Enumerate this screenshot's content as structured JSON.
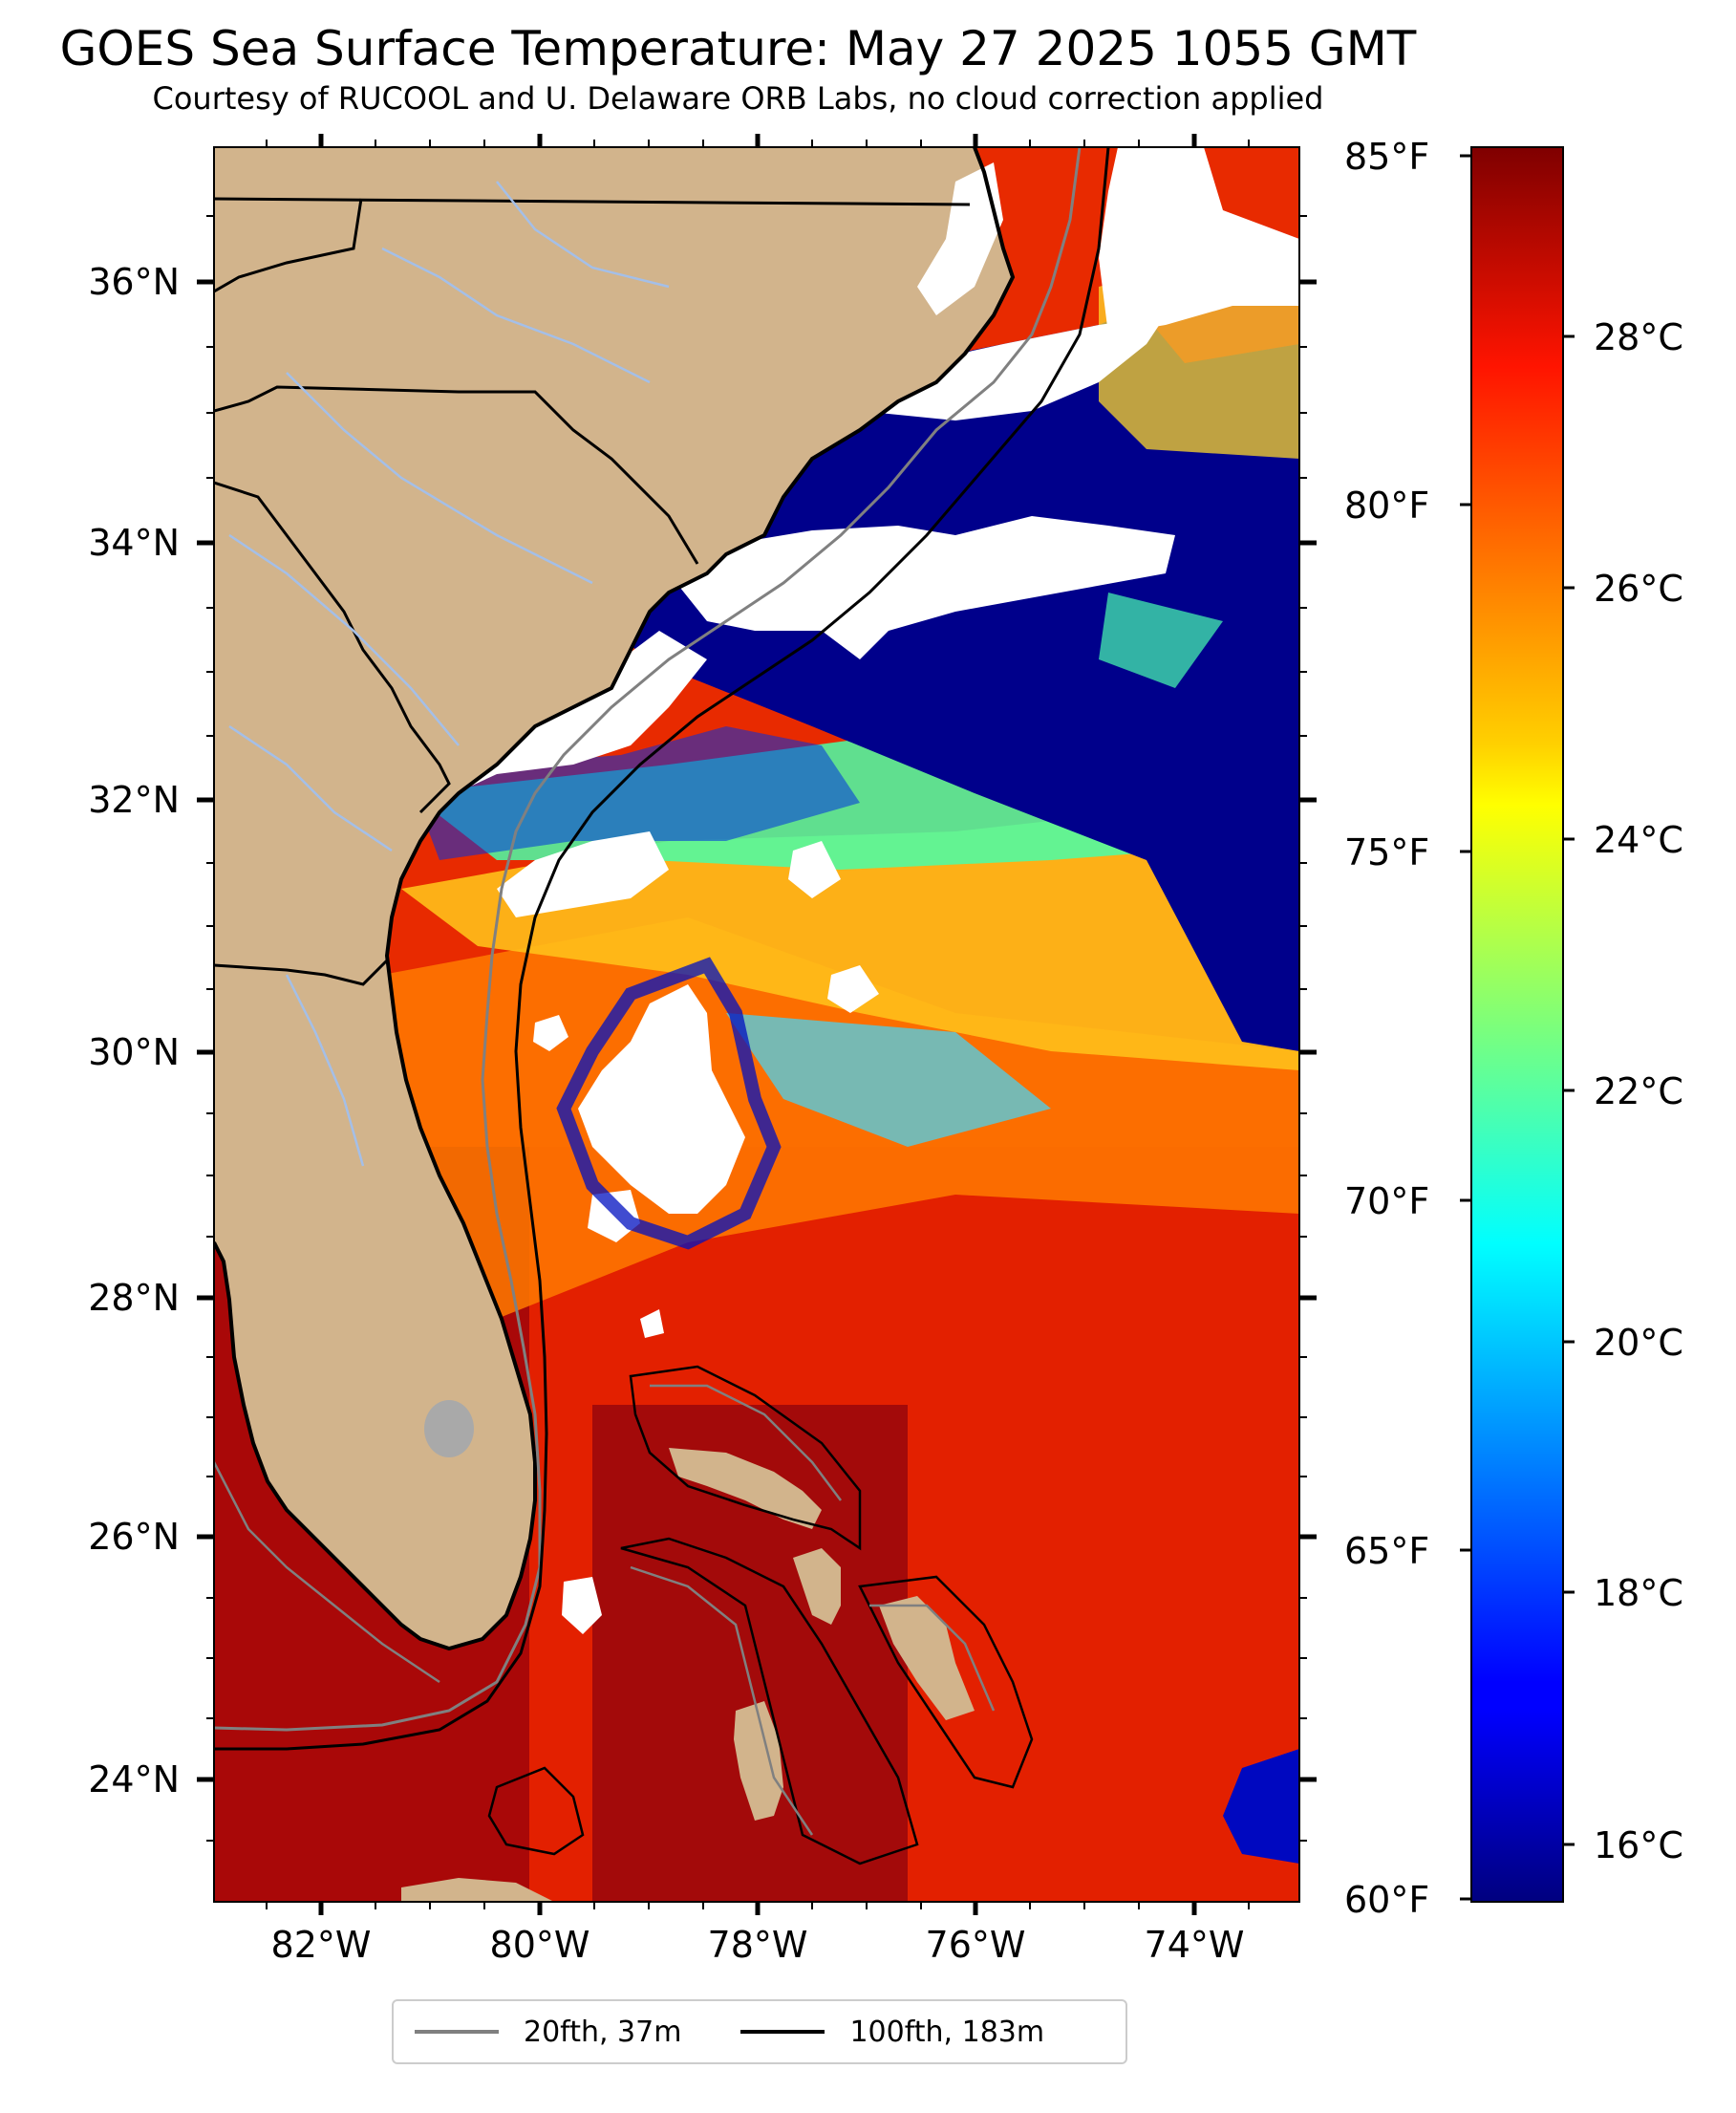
{
  "header": {
    "title": "GOES Sea Surface Temperature: May 27 2025 1055 GMT",
    "subtitle": "Courtesy of RUCOOL and U. Delaware ORB Labs, no cloud correction applied"
  },
  "map": {
    "lon_range": [
      -83.0,
      -73.0
    ],
    "lat_range": [
      23.1,
      37.0
    ],
    "lon_ticks": [
      "82°W",
      "80°W",
      "78°W",
      "76°W",
      "74°W"
    ],
    "lat_ticks": [
      "24°N",
      "26°N",
      "28°N",
      "30°N",
      "32°N",
      "34°N",
      "36°N"
    ],
    "colors": {
      "land": "#d2b48c",
      "cloud": "#ffffff",
      "warm": "#e82000",
      "cold": "#00008b",
      "rivers": "#a4bfe8"
    }
  },
  "colorbar": {
    "colormap": "jet",
    "fahrenheit_ticks": [
      "85°F",
      "80°F",
      "75°F",
      "70°F",
      "65°F",
      "60°F"
    ],
    "celsius_ticks": [
      "28°C",
      "26°C",
      "24°C",
      "22°C",
      "20°C",
      "18°C",
      "16°C"
    ]
  },
  "legend": {
    "items": [
      {
        "label": "20fth, 37m",
        "color": "#808080"
      },
      {
        "label": "100fth, 183m",
        "color": "#000000"
      }
    ]
  }
}
